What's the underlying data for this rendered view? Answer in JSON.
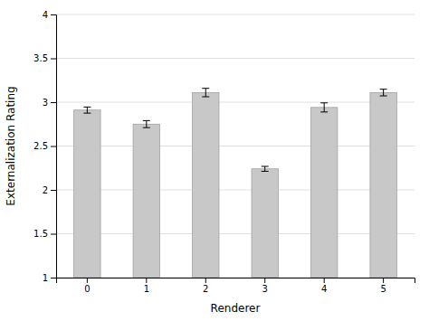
{
  "chart_data": {
    "type": "bar",
    "xlabel": "Renderer",
    "ylabel": "Externalization Rating",
    "categories": [
      "0",
      "1",
      "2",
      "3",
      "4",
      "5"
    ],
    "values": [
      2.91,
      2.75,
      3.11,
      2.24,
      2.94,
      3.11
    ],
    "errors": [
      0.035,
      0.04,
      0.048,
      0.028,
      0.052,
      0.038
    ],
    "color": "#c8c8c8",
    "ylim": [
      1,
      4
    ],
    "yticks": [
      1,
      1.5,
      2,
      2.5,
      3,
      3.5,
      4
    ],
    "grid": true
  }
}
